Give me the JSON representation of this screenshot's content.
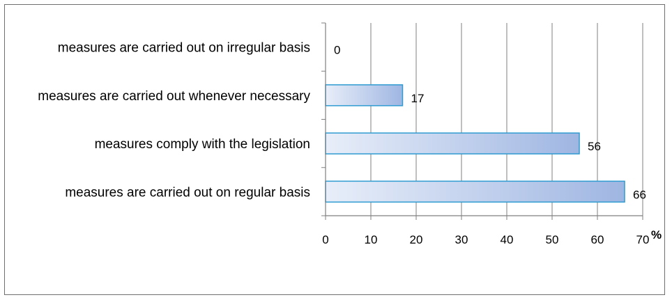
{
  "chart_data": {
    "type": "bar",
    "orientation": "horizontal",
    "categories": [
      "measures are carried out on irregular basis",
      "measures are carried out whenever necessary",
      "measures comply with the legislation",
      "measures are carried out on regular basis"
    ],
    "values": [
      0,
      17,
      56,
      66
    ],
    "data_labels": [
      "0",
      "17",
      "56",
      "66"
    ],
    "xlim": [
      0,
      70
    ],
    "x_ticks": [
      "0",
      "10",
      "20",
      "30",
      "40",
      "50",
      "60",
      "70"
    ],
    "x_unit": "%",
    "grid": "vertical",
    "legend": "none",
    "colors": {
      "bar_fill_start": "#e8eef9",
      "bar_fill_end": "#9fb6e2",
      "bar_stroke": "#2e9bd1",
      "axis": "#7f7f7f",
      "grid": "#7f7f7f"
    }
  }
}
